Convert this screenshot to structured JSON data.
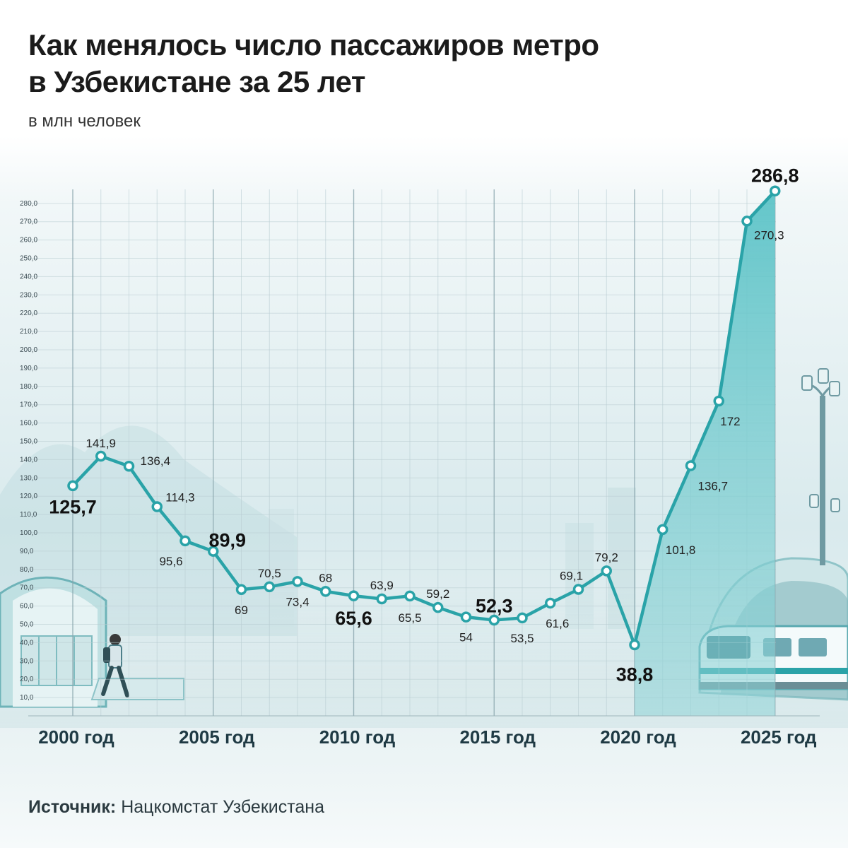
{
  "title_line1": "Как менялось число пассажиров метро",
  "title_line2": "в Узбекистане за 25 лет",
  "subtitle": "в млн человек",
  "source_label": "Источник:",
  "source_value": "Нацкомстат Узбекистана",
  "colors": {
    "line": "#2aa3a8",
    "area": "#5cc3c7",
    "grid": "#b9cdd2",
    "axis_label": "#1f3a44"
  },
  "chart_data": {
    "type": "line",
    "x": [
      2000,
      2001,
      2002,
      2003,
      2004,
      2005,
      2006,
      2007,
      2008,
      2009,
      2010,
      2011,
      2012,
      2013,
      2014,
      2015,
      2016,
      2017,
      2018,
      2019,
      2020,
      2021,
      2022,
      2023,
      2024,
      2025
    ],
    "series": [
      {
        "values": [
          125.7,
          141.9,
          136.4,
          114.3,
          95.6,
          89.9,
          69,
          70.5,
          73.4,
          68,
          65.6,
          63.9,
          65.5,
          59.2,
          54,
          52.3,
          53.5,
          61.6,
          69.1,
          79.2,
          38.8,
          101.8,
          136.7,
          172,
          270.3,
          286.8
        ]
      }
    ],
    "value_labels": [
      "125,7",
      "141,9",
      "136,4",
      "114,3",
      "95,6",
      "89,9",
      "69",
      "70,5",
      "73,4",
      "68",
      "65,6",
      "63,9",
      "65,5",
      "59,2",
      "54",
      "52,3",
      "53,5",
      "61,6",
      "69,1",
      "79,2",
      "38,8",
      "101,8",
      "136,7",
      "172",
      "270,3",
      "286,8"
    ],
    "highlighted_years": [
      2000,
      2005,
      2010,
      2015,
      2020,
      2025
    ],
    "x_tick_labels": [
      "2000 год",
      "2005 год",
      "2010 год",
      "2015 год",
      "2020 год",
      "2025 год"
    ],
    "y_tick_labels": [
      "10,0",
      "20,0",
      "30,0",
      "40,0",
      "50,0",
      "60,0",
      "70,0",
      "80,0",
      "90,0",
      "100,0",
      "110,0",
      "120,0",
      "130,0",
      "140,0",
      "150,0",
      "160,0",
      "170,0",
      "180,0",
      "190,0",
      "200,0",
      "210,0",
      "220,0",
      "230,0",
      "240,0",
      "250,0",
      "260,0",
      "270,0",
      "280,0"
    ],
    "ylim": [
      0,
      290
    ],
    "area_shading_from": 2020,
    "grid": true
  }
}
